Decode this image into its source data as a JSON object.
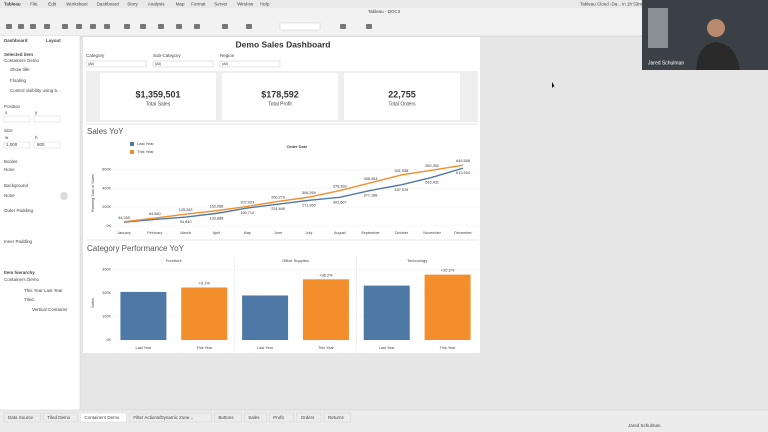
{
  "menu_bar": {
    "app": "Tableau",
    "items": [
      "File",
      "Edit",
      "Worksheet",
      "Dashboard",
      "Story",
      "Analysis",
      "Map",
      "Format",
      "Server",
      "Window",
      "Help"
    ],
    "status": "Tableau Cloud -Da... in 1h 53m"
  },
  "window_title": "Tableau - DOC3",
  "side_panel": {
    "tabs": [
      "Dashboard",
      "Layout"
    ],
    "selected_item_heading": "Selected item",
    "selected_item": "Containers Demo",
    "options": [
      "Show title",
      "Floating",
      "Control visibility using b..."
    ],
    "position": "Position",
    "x": "x",
    "y": "y",
    "size": "Size",
    "w": "w",
    "h": "h",
    "width": "1,000",
    "height": "800",
    "border": "Border",
    "border_value": "None",
    "background": "Background",
    "background_value": "None",
    "outer_padding": "Outer Padding",
    "inner_padding": "Inner Padding",
    "hierarchy_heading": "Item hierarchy",
    "hierarchy": [
      "Containers Demo",
      "This Year Last Year",
      "Tiled",
      "Vertical Container"
    ]
  },
  "dashboard": {
    "title": "Demo Sales Dashboard",
    "filters": [
      {
        "label": "Category",
        "value": "(All)"
      },
      {
        "label": "Sub-Category",
        "value": "(All)"
      },
      {
        "label": "Region",
        "value": "(All)"
      }
    ],
    "kpis": [
      {
        "value": "$1,359,501",
        "label": "Total Sales"
      },
      {
        "value": "$178,592",
        "label": "Total Profit"
      },
      {
        "value": "22,755",
        "label": "Total Orders"
      }
    ],
    "sales_yoy": {
      "type": "line",
      "title": "Sales YoY",
      "header": "Order Date",
      "y_label": "Running Sum of Sales",
      "categories": [
        "January",
        "February",
        "March",
        "April",
        "May",
        "June",
        "July",
        "August",
        "September",
        "October",
        "November",
        "December"
      ],
      "ylim": [
        0,
        700000
      ],
      "yticks": [
        {
          "value": 0,
          "label": "0K"
        },
        {
          "value": 200000,
          "label": "200K"
        },
        {
          "value": 400000,
          "label": "400K"
        },
        {
          "value": 600000,
          "label": "600K"
        }
      ],
      "grid": true,
      "series": [
        {
          "name": "Last Year",
          "color": "#4e79a7",
          "values": [
            40000,
            70000,
            94840,
            133888,
            190712,
            231649,
            271950,
            303667,
            377188,
            437019,
            516431,
            613934
          ],
          "value_labels": [
            null,
            null,
            "94,840",
            "133,888",
            "190,712",
            "231,649",
            "271,950",
            "303,667",
            "377,188",
            "437,019",
            "516,431",
            "613,934"
          ]
        },
        {
          "name": "This Year",
          "color": "#f28e2b",
          "values": [
            44259,
            84580,
            125283,
            162068,
            207023,
            260279,
            306269,
            376399,
            458463,
            541938,
            592392,
            645558
          ],
          "value_labels": [
            "44,259",
            "84,580",
            "125,283",
            "162,068",
            "207,023",
            "260,279",
            "306,269",
            "376,399",
            "458,463",
            "541,938",
            "592,392",
            "645,558"
          ]
        }
      ]
    },
    "category_performance": {
      "type": "bar",
      "title": "Category Performance YoY",
      "y_label": "Sales",
      "categories": [
        "Last Year",
        "This Year"
      ],
      "colors": [
        "#4e79a7",
        "#f28e2b"
      ],
      "ylim": [
        0,
        320000
      ],
      "yticks": [
        {
          "value": 0,
          "label": "0K"
        },
        {
          "value": 100000,
          "label": "100K"
        },
        {
          "value": 200000,
          "label": "200K"
        },
        {
          "value": 300000,
          "label": "300K"
        }
      ],
      "panels": [
        {
          "name": "Furniture",
          "values": [
            205000,
            224000
          ],
          "change": "+9.1%"
        },
        {
          "name": "Office Supplies",
          "values": [
            190000,
            259000
          ],
          "change": "+36.2%"
        },
        {
          "name": "Technology",
          "values": [
            232000,
            279000
          ],
          "change": "+20.2%"
        }
      ]
    }
  },
  "tabs": [
    "Data Source",
    "Tiled Demo",
    "Containers Demo",
    "Filter Actions/Dynamic Zone...",
    "Buttons",
    "Sales",
    "Profit",
    "Orders",
    "Returns"
  ],
  "user": "Jared Schulman",
  "webcam_name": "Jared Schulman"
}
